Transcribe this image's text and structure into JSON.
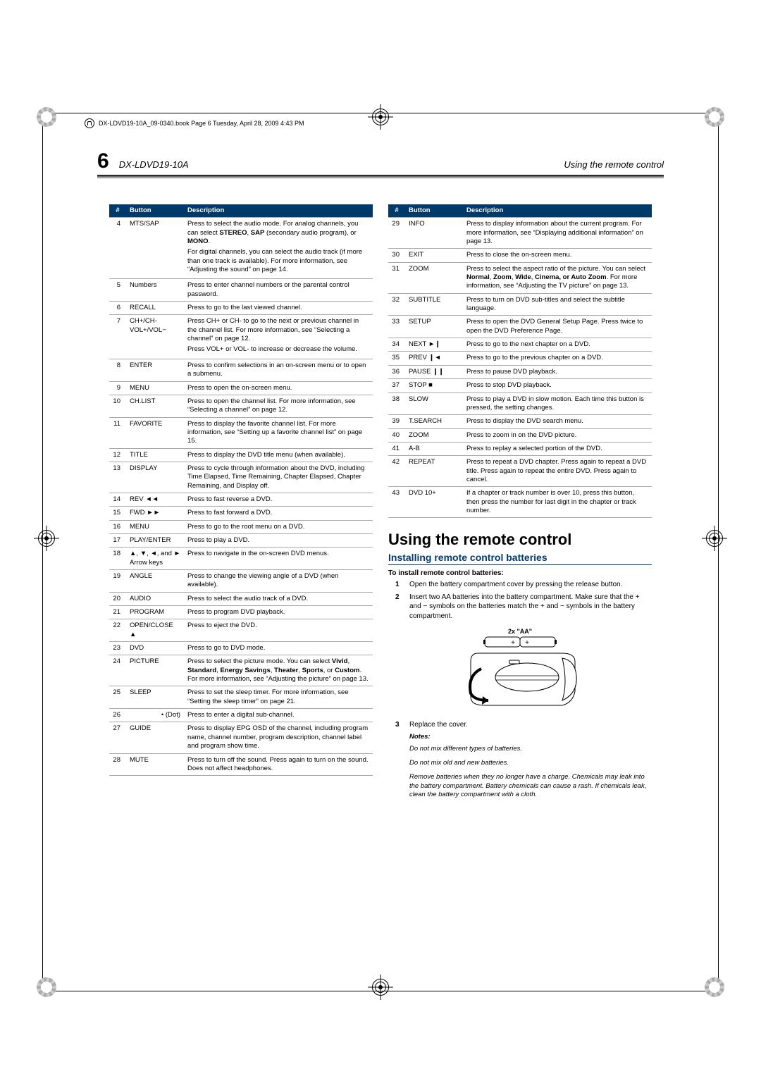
{
  "book_info": "DX-LDVD19-10A_09-0340.book  Page 6  Tuesday, April 28, 2009  4:43 PM",
  "header": {
    "page_number": "6",
    "model": "DX-LDVD19-10A",
    "section": "Using the remote control"
  },
  "table_headers": {
    "num": "#",
    "button": "Button",
    "desc": "Description"
  },
  "rows_left": [
    {
      "n": "4",
      "b": "MTS/SAP",
      "d": "Press to select the audio mode. For analog channels, you can select <b>STEREO</b>, <b>SAP</b> (secondary audio program), or <b>MONO</b>.<p>For digital channels, you can select the audio track (if more than one track is available). For more information, see “Adjusting the sound” on page  14.</p>"
    },
    {
      "n": "5",
      "b": "Numbers",
      "d": "Press to enter channel numbers or the parental control password."
    },
    {
      "n": "6",
      "b": "RECALL",
      "d": "Press to go to the last viewed channel."
    },
    {
      "n": "7",
      "b": "CH+/CH-<br>VOL+/VOL−",
      "d": "Press CH+ or CH- to go to the next or previous channel in the channel list. For more information, see “Selecting a channel” on page  12.<p>Press VOL+ or VOL- to increase or decrease the volume.</p>"
    },
    {
      "n": "8",
      "b": "ENTER",
      "d": "Press to confirm selections in an on-screen menu or to open a submenu."
    },
    {
      "n": "9",
      "b": "MENU",
      "d": "Press to open the on-screen menu."
    },
    {
      "n": "10",
      "b": "CH.LIST",
      "d": "Press to open the channel list. For more information, see “Selecting a channel” on page  12."
    },
    {
      "n": "11",
      "b": "FAVORITE",
      "d": "Press to display the favorite channel list. For more information, see “Setting up a favorite channel list” on page  15."
    },
    {
      "n": "12",
      "b": "TITLE",
      "d": "Press to display the DVD title menu (when available)."
    },
    {
      "n": "13",
      "b": "DISPLAY",
      "d": "Press to cycle through information about the DVD, including Time Elapsed, Time Remaining, Chapter Elapsed, Chapter Remaining, and Display off."
    },
    {
      "n": "14",
      "b": "REV <span class='sym'>◄◄</span>",
      "d": "Press to fast reverse a DVD."
    },
    {
      "n": "15",
      "b": "FWD <span class='sym'>►►</span>",
      "d": "Press to fast forward a DVD."
    },
    {
      "n": "16",
      "b": "MENU",
      "d": "Press to go to the root menu on a DVD."
    },
    {
      "n": "17",
      "b": "PLAY/ENTER",
      "d": "Press to play a DVD."
    },
    {
      "n": "18",
      "b": "<span class='sym'>▲</span>, <span class='sym'>▼</span>, <span class='sym'>◄</span>, and <span class='sym'>►</span><br>Arrow keys",
      "d": "Press to navigate in the on-screen DVD menus."
    },
    {
      "n": "19",
      "b": "ANGLE",
      "d": "Press to change the viewing angle of a DVD (when available)."
    },
    {
      "n": "20",
      "b": "AUDIO",
      "d": "Press to select the audio track of a DVD."
    },
    {
      "n": "21",
      "b": "PROGRAM",
      "d": "Press to program DVD playback."
    },
    {
      "n": "22",
      "b": "OPEN/CLOSE <span class='sym'>▲</span>",
      "d": "Press to eject the DVD."
    },
    {
      "n": "23",
      "b": "DVD",
      "d": "Press to go to DVD mode."
    },
    {
      "n": "24",
      "b": "PICTURE",
      "d": "Press to select the picture mode. You can select <b>Vivid</b>, <b>Standard</b>, <b>Energy Savings</b>, <b>Theater</b>, <b>Sports</b>, or <b>Custom</b>. For more information, see “Adjusting the picture” on page  13."
    },
    {
      "n": "25",
      "b": "SLEEP",
      "d": "Press to set the sleep timer. For more information, see “Setting the sleep timer” on page  21."
    },
    {
      "n": "26",
      "b": "<span style='float:right'>• (Dot)</span>",
      "d": "Press to enter a digital sub-channel."
    },
    {
      "n": "27",
      "b": "GUIDE",
      "d": "Press to display EPG OSD of the channel, including program name, channel number, program description, channel label and program show time."
    },
    {
      "n": "28",
      "b": "MUTE",
      "d": "Press to turn off the sound. Press again to turn on the sound. Does not affect headphones."
    }
  ],
  "rows_right": [
    {
      "n": "29",
      "b": "INFO",
      "d": "Press to display information about the current program. For more information, see “Displaying additional information” on page  13."
    },
    {
      "n": "30",
      "b": "EXIT",
      "d": "Press to close the on-screen menu."
    },
    {
      "n": "31",
      "b": "ZOOM",
      "d": "Press to select the aspect ratio of the picture. You can select <b>Normal</b>, <b>Zoom</b>, <b>Wide</b>, <b>Cinema, or Auto Zoom</b>. For more information, see “Adjusting the TV picture” on page  13."
    },
    {
      "n": "32",
      "b": "SUBTITLE",
      "d": "Press to turn on DVD sub-titles and select the subtitle language."
    },
    {
      "n": "33",
      "b": "SETUP",
      "d": "Press to open the DVD General Setup Page. Press twice to open the DVD Preference Page."
    },
    {
      "n": "34",
      "b": "NEXT <span class='sym'>►❙</span>",
      "d": "Press to go to the next chapter on a DVD."
    },
    {
      "n": "35",
      "b": "PREV <span class='sym'>❙◄</span>",
      "d": "Press to go to the previous chapter on a DVD."
    },
    {
      "n": "36",
      "b": "PAUSE <span class='sym'>❙❙</span>",
      "d": "Press to pause DVD playback."
    },
    {
      "n": "37",
      "b": "STOP <span class='sym'>■</span>",
      "d": "Press to stop DVD playback."
    },
    {
      "n": "38",
      "b": "SLOW",
      "d": "Press to play a DVD in slow motion. Each time this button is pressed, the setting changes."
    },
    {
      "n": "39",
      "b": "T.SEARCH",
      "d": "Press to display the DVD search menu."
    },
    {
      "n": "40",
      "b": "ZOOM",
      "d": "Press to zoom in on the DVD picture."
    },
    {
      "n": "41",
      "b": "A-B",
      "d": "Press to replay a selected portion of the DVD."
    },
    {
      "n": "42",
      "b": "REPEAT",
      "d": "Press to repeat a DVD chapter. Press again to repeat a DVD title. Press again to repeat the entire DVD. Press again to cancel."
    },
    {
      "n": "43",
      "b": "DVD 10+",
      "d": "If a chapter or track number is over 10, press this button, then press the number for last digit in the chapter or track number."
    }
  ],
  "section": {
    "h1": "Using the remote control",
    "h2": "Installing remote control batteries",
    "subhead": "To install remote control batteries:",
    "steps": [
      "Open the battery compartment cover by pressing the release button.",
      "Insert two AA batteries into the battery compartment. Make sure that the + and − symbols on the batteries match the + and − symbols in the battery compartment.",
      "Replace the cover."
    ],
    "fig_label": "2x \"AA\"",
    "notes_title": "Notes:",
    "notes": [
      "Do not mix different types of batteries.",
      "Do not mix old and new batteries.",
      "Remove batteries when they no longer have a charge. Chemicals may leak into the battery compartment. Battery chemicals can cause a rash. If chemicals leak, clean the battery compartment with a cloth."
    ]
  }
}
